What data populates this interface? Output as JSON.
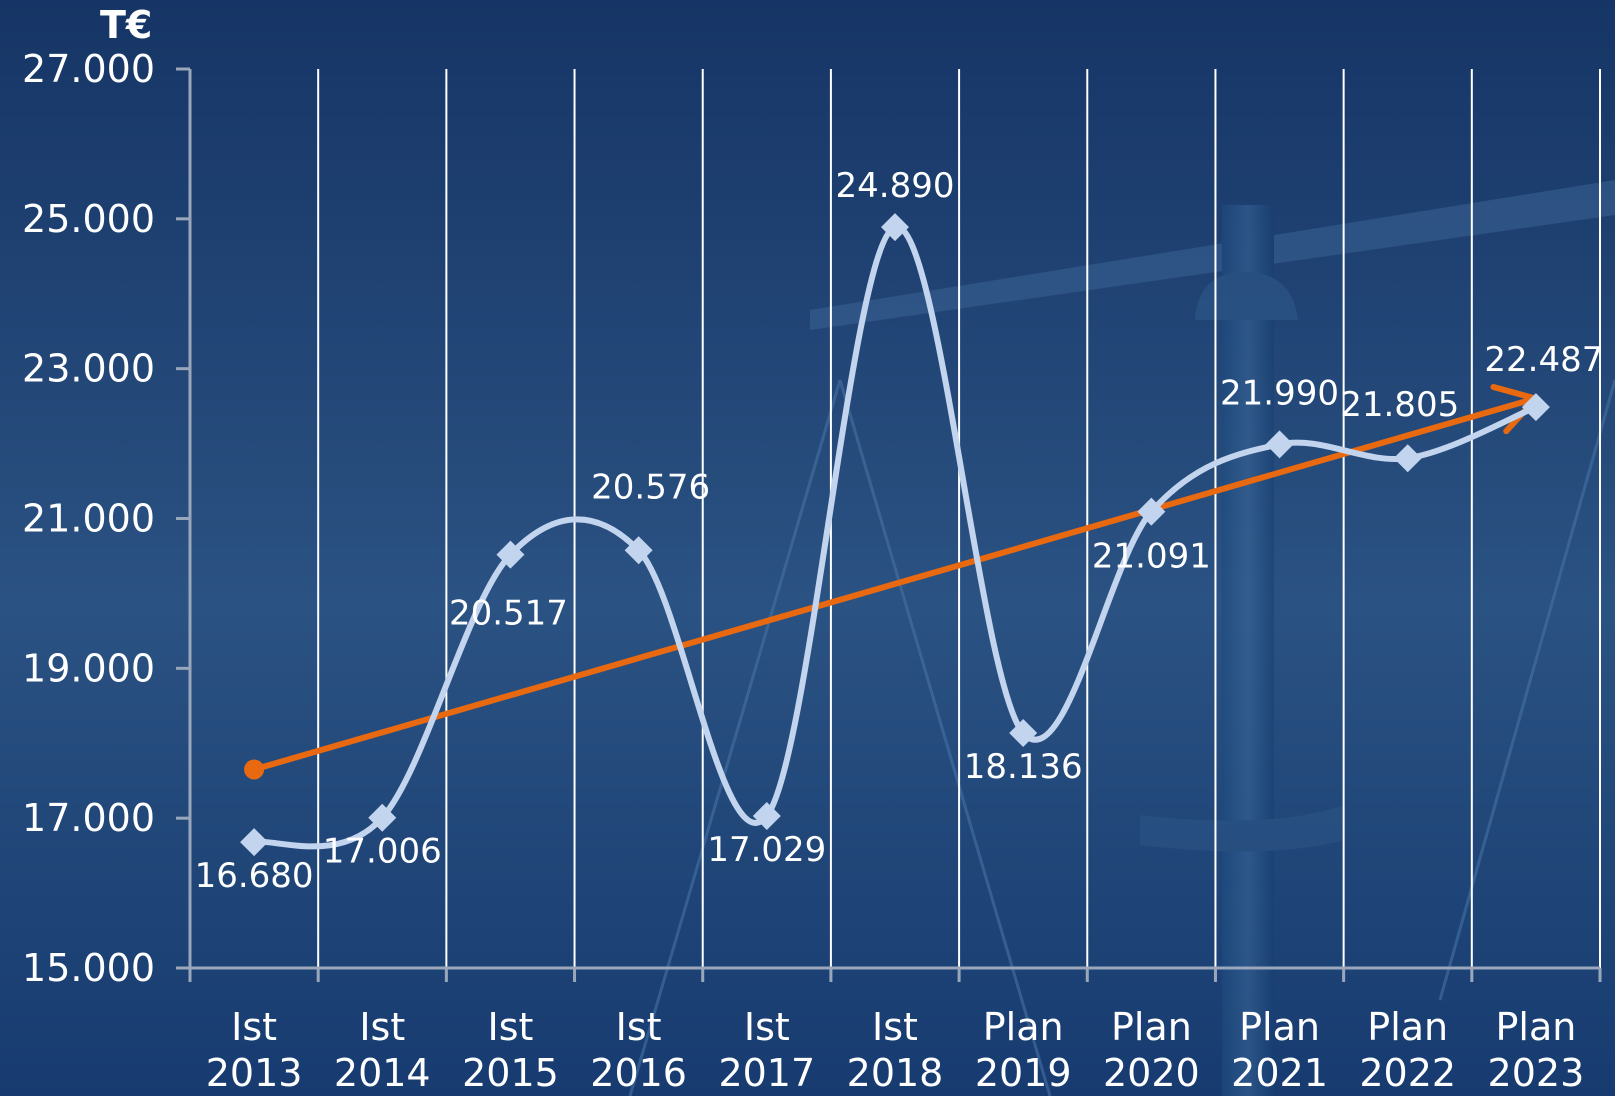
{
  "chart_data": {
    "type": "line",
    "unit_label": "T€",
    "categories": [
      [
        "Ist",
        "2013"
      ],
      [
        "Ist",
        "2014"
      ],
      [
        "Ist",
        "2015"
      ],
      [
        "Ist",
        "2016"
      ],
      [
        "Ist",
        "2017"
      ],
      [
        "Ist",
        "2018"
      ],
      [
        "Plan",
        "2019"
      ],
      [
        "Plan",
        "2020"
      ],
      [
        "Plan",
        "2021"
      ],
      [
        "Plan",
        "2022"
      ],
      [
        "Plan",
        "2023"
      ]
    ],
    "y_tick_labels": [
      "15.000",
      "17.000",
      "19.000",
      "21.000",
      "23.000",
      "25.000",
      "27.000"
    ],
    "ylim": [
      15000,
      27000
    ],
    "series": [
      {
        "values": [
          16680,
          17006,
          20517,
          20576,
          17029,
          24890,
          18136,
          21091,
          21990,
          21805,
          22487
        ],
        "labels": [
          "16.680",
          "17.006",
          "20.517",
          "20.576",
          "17.029",
          "24.890",
          "18.136",
          "21.091",
          "21.990",
          "21.805",
          "22.487"
        ],
        "color": "#c3d4ee",
        "marker": "diamond",
        "smooth": true
      }
    ],
    "trend": {
      "start": 17650,
      "end": 22600,
      "color": "#e8690f",
      "style": "arrow"
    },
    "grid": "vertical",
    "legend": "none"
  }
}
